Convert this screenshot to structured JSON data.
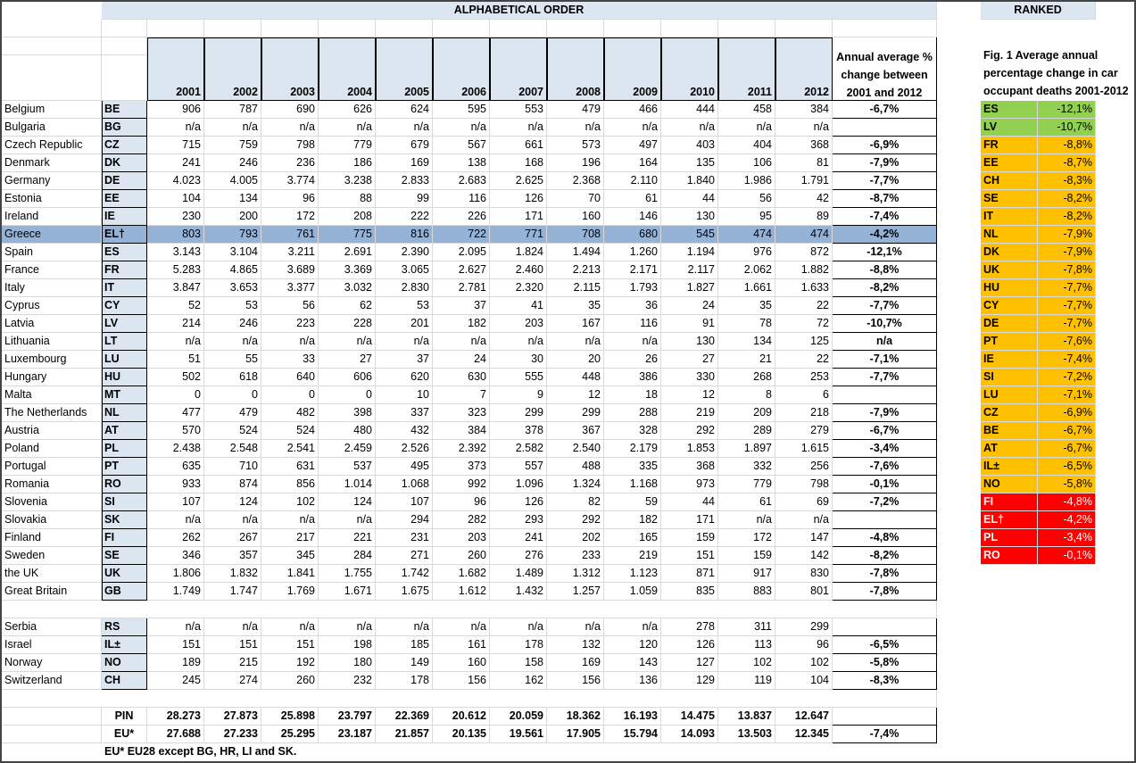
{
  "headers": {
    "alphabetical": "ALPHABETICAL ORDER",
    "ranked": "RANKED",
    "avg_change": "Annual average % change between 2001 and 2012",
    "fig_title": "Fig. 1 Average annual percentage change in car occupant deaths 2001-2012",
    "years": [
      "2001",
      "2002",
      "2003",
      "2004",
      "2005",
      "2006",
      "2007",
      "2008",
      "2009",
      "2010",
      "2011",
      "2012"
    ]
  },
  "rows": [
    {
      "country": "Belgium",
      "code": "BE",
      "values": [
        "906",
        "787",
        "690",
        "626",
        "624",
        "595",
        "553",
        "479",
        "466",
        "444",
        "458",
        "384"
      ],
      "change": "-6,7%"
    },
    {
      "country": "Bulgaria",
      "code": "BG",
      "values": [
        "n/a",
        "n/a",
        "n/a",
        "n/a",
        "n/a",
        "n/a",
        "n/a",
        "n/a",
        "n/a",
        "n/a",
        "n/a",
        "n/a"
      ],
      "change": ""
    },
    {
      "country": "Czech Republic",
      "code": "CZ",
      "values": [
        "715",
        "759",
        "798",
        "779",
        "679",
        "567",
        "661",
        "573",
        "497",
        "403",
        "404",
        "368"
      ],
      "change": "-6,9%"
    },
    {
      "country": "Denmark",
      "code": "DK",
      "values": [
        "241",
        "246",
        "236",
        "186",
        "169",
        "138",
        "168",
        "196",
        "164",
        "135",
        "106",
        "81"
      ],
      "change": "-7,9%"
    },
    {
      "country": "Germany",
      "code": "DE",
      "values": [
        "4.023",
        "4.005",
        "3.774",
        "3.238",
        "2.833",
        "2.683",
        "2.625",
        "2.368",
        "2.110",
        "1.840",
        "1.986",
        "1.791"
      ],
      "change": "-7,7%"
    },
    {
      "country": "Estonia",
      "code": "EE",
      "values": [
        "104",
        "134",
        "96",
        "88",
        "99",
        "116",
        "126",
        "70",
        "61",
        "44",
        "56",
        "42"
      ],
      "change": "-8,7%"
    },
    {
      "country": "Ireland",
      "code": "IE",
      "values": [
        "230",
        "200",
        "172",
        "208",
        "222",
        "226",
        "171",
        "160",
        "146",
        "130",
        "95",
        "89"
      ],
      "change": "-7,4%"
    },
    {
      "country": "Greece",
      "code": "EL†",
      "values": [
        "803",
        "793",
        "761",
        "775",
        "816",
        "722",
        "771",
        "708",
        "680",
        "545",
        "474",
        "474"
      ],
      "change": "-4,2%"
    },
    {
      "country": "Spain",
      "code": "ES",
      "values": [
        "3.143",
        "3.104",
        "3.211",
        "2.691",
        "2.390",
        "2.095",
        "1.824",
        "1.494",
        "1.260",
        "1.194",
        "976",
        "872"
      ],
      "change": "-12,1%"
    },
    {
      "country": "France",
      "code": "FR",
      "values": [
        "5.283",
        "4.865",
        "3.689",
        "3.369",
        "3.065",
        "2.627",
        "2.460",
        "2.213",
        "2.171",
        "2.117",
        "2.062",
        "1.882"
      ],
      "change": "-8,8%"
    },
    {
      "country": "Italy",
      "code": "IT",
      "values": [
        "3.847",
        "3.653",
        "3.377",
        "3.032",
        "2.830",
        "2.781",
        "2.320",
        "2.115",
        "1.793",
        "1.827",
        "1.661",
        "1.633"
      ],
      "change": "-8,2%"
    },
    {
      "country": "Cyprus",
      "code": "CY",
      "values": [
        "52",
        "53",
        "56",
        "62",
        "53",
        "37",
        "41",
        "35",
        "36",
        "24",
        "35",
        "22"
      ],
      "change": "-7,7%"
    },
    {
      "country": "Latvia",
      "code": "LV",
      "values": [
        "214",
        "246",
        "223",
        "228",
        "201",
        "182",
        "203",
        "167",
        "116",
        "91",
        "78",
        "72"
      ],
      "change": "-10,7%"
    },
    {
      "country": "Lithuania",
      "code": "LT",
      "values": [
        "n/a",
        "n/a",
        "n/a",
        "n/a",
        "n/a",
        "n/a",
        "n/a",
        "n/a",
        "n/a",
        "130",
        "134",
        "125"
      ],
      "change": "n/a"
    },
    {
      "country": "Luxembourg",
      "code": "LU",
      "values": [
        "51",
        "55",
        "33",
        "27",
        "37",
        "24",
        "30",
        "20",
        "26",
        "27",
        "21",
        "22"
      ],
      "change": "-7,1%"
    },
    {
      "country": "Hungary",
      "code": "HU",
      "values": [
        "502",
        "618",
        "640",
        "606",
        "620",
        "630",
        "555",
        "448",
        "386",
        "330",
        "268",
        "253"
      ],
      "change": "-7,7%"
    },
    {
      "country": "Malta",
      "code": "MT",
      "values": [
        "0",
        "0",
        "0",
        "0",
        "10",
        "7",
        "9",
        "12",
        "18",
        "12",
        "8",
        "6"
      ],
      "change": ""
    },
    {
      "country": "The Netherlands",
      "code": "NL",
      "values": [
        "477",
        "479",
        "482",
        "398",
        "337",
        "323",
        "299",
        "299",
        "288",
        "219",
        "209",
        "218"
      ],
      "change": "-7,9%"
    },
    {
      "country": "Austria",
      "code": "AT",
      "values": [
        "570",
        "524",
        "524",
        "480",
        "432",
        "384",
        "378",
        "367",
        "328",
        "292",
        "289",
        "279"
      ],
      "change": "-6,7%"
    },
    {
      "country": "Poland",
      "code": "PL",
      "values": [
        "2.438",
        "2.548",
        "2.541",
        "2.459",
        "2.526",
        "2.392",
        "2.582",
        "2.540",
        "2.179",
        "1.853",
        "1.897",
        "1.615"
      ],
      "change": "-3,4%"
    },
    {
      "country": "Portugal",
      "code": "PT",
      "values": [
        "635",
        "710",
        "631",
        "537",
        "495",
        "373",
        "557",
        "488",
        "335",
        "368",
        "332",
        "256"
      ],
      "change": "-7,6%"
    },
    {
      "country": "Romania",
      "code": "RO",
      "values": [
        "933",
        "874",
        "856",
        "1.014",
        "1.068",
        "992",
        "1.096",
        "1.324",
        "1.168",
        "973",
        "779",
        "798"
      ],
      "change": "-0,1%"
    },
    {
      "country": "Slovenia",
      "code": "SI",
      "values": [
        "107",
        "124",
        "102",
        "124",
        "107",
        "96",
        "126",
        "82",
        "59",
        "44",
        "61",
        "69"
      ],
      "change": "-7,2%"
    },
    {
      "country": "Slovakia",
      "code": "SK",
      "values": [
        "n/a",
        "n/a",
        "n/a",
        "n/a",
        "294",
        "282",
        "293",
        "292",
        "182",
        "171",
        "n/a",
        "n/a"
      ],
      "change": ""
    },
    {
      "country": "Finland",
      "code": "FI",
      "values": [
        "262",
        "267",
        "217",
        "221",
        "231",
        "203",
        "241",
        "202",
        "165",
        "159",
        "172",
        "147"
      ],
      "change": "-4,8%"
    },
    {
      "country": "Sweden",
      "code": "SE",
      "values": [
        "346",
        "357",
        "345",
        "284",
        "271",
        "260",
        "276",
        "233",
        "219",
        "151",
        "159",
        "142"
      ],
      "change": "-8,2%"
    },
    {
      "country": "the UK",
      "code": "UK",
      "values": [
        "1.806",
        "1.832",
        "1.841",
        "1.755",
        "1.742",
        "1.682",
        "1.489",
        "1.312",
        "1.123",
        "871",
        "917",
        "830"
      ],
      "change": "-7,8%"
    },
    {
      "country": "Great Britain",
      "code": "GB",
      "values": [
        "1.749",
        "1.747",
        "1.769",
        "1.671",
        "1.675",
        "1.612",
        "1.432",
        "1.257",
        "1.059",
        "835",
        "883",
        "801"
      ],
      "change": "-7,8%"
    }
  ],
  "other_rows": [
    {
      "country": "Serbia",
      "code": "RS",
      "values": [
        "n/a",
        "n/a",
        "n/a",
        "n/a",
        "n/a",
        "n/a",
        "n/a",
        "n/a",
        "n/a",
        "278",
        "311",
        "299"
      ],
      "change": ""
    },
    {
      "country": "Israel",
      "code": "IL±",
      "values": [
        "151",
        "151",
        "151",
        "198",
        "185",
        "161",
        "178",
        "132",
        "120",
        "126",
        "113",
        "96"
      ],
      "change": "-6,5%"
    },
    {
      "country": "Norway",
      "code": "NO",
      "values": [
        "189",
        "215",
        "192",
        "180",
        "149",
        "160",
        "158",
        "169",
        "143",
        "127",
        "102",
        "102"
      ],
      "change": "-5,8%"
    },
    {
      "country": "Switzerland",
      "code": "CH",
      "values": [
        "245",
        "274",
        "260",
        "232",
        "178",
        "156",
        "162",
        "156",
        "136",
        "129",
        "119",
        "104"
      ],
      "change": "-8,3%"
    }
  ],
  "totals": [
    {
      "label": "PIN",
      "values": [
        "28.273",
        "27.873",
        "25.898",
        "23.797",
        "22.369",
        "20.612",
        "20.059",
        "18.362",
        "16.193",
        "14.475",
        "13.837",
        "12.647"
      ],
      "change": ""
    },
    {
      "label": "EU*",
      "values": [
        "27.688",
        "27.233",
        "25.295",
        "23.187",
        "21.857",
        "20.135",
        "19.561",
        "17.905",
        "15.794",
        "14.093",
        "13.503",
        "12.345"
      ],
      "change": "-7,4%"
    }
  ],
  "footnote": "EU* EU28 except BG, HR, LI and SK.",
  "ranked": [
    {
      "code": "ES",
      "value": "-12,1%",
      "color": "#92d050"
    },
    {
      "code": "LV",
      "value": "-10,7%",
      "color": "#92d050"
    },
    {
      "code": "FR",
      "value": "-8,8%",
      "color": "#ffc000"
    },
    {
      "code": "EE",
      "value": "-8,7%",
      "color": "#ffc000"
    },
    {
      "code": "CH",
      "value": "-8,3%",
      "color": "#ffc000"
    },
    {
      "code": "SE",
      "value": "-8,2%",
      "color": "#ffc000"
    },
    {
      "code": "IT",
      "value": "-8,2%",
      "color": "#ffc000"
    },
    {
      "code": "NL",
      "value": "-7,9%",
      "color": "#ffc000"
    },
    {
      "code": "DK",
      "value": "-7,9%",
      "color": "#ffc000"
    },
    {
      "code": "UK",
      "value": "-7,8%",
      "color": "#ffc000"
    },
    {
      "code": "HU",
      "value": "-7,7%",
      "color": "#ffc000"
    },
    {
      "code": "CY",
      "value": "-7,7%",
      "color": "#ffc000"
    },
    {
      "code": "DE",
      "value": "-7,7%",
      "color": "#ffc000"
    },
    {
      "code": "PT",
      "value": "-7,6%",
      "color": "#ffc000"
    },
    {
      "code": "IE",
      "value": "-7,4%",
      "color": "#ffc000"
    },
    {
      "code": "SI",
      "value": "-7,2%",
      "color": "#ffc000"
    },
    {
      "code": "LU",
      "value": "-7,1%",
      "color": "#ffc000"
    },
    {
      "code": "CZ",
      "value": "-6,9%",
      "color": "#ffc000"
    },
    {
      "code": "BE",
      "value": "-6,7%",
      "color": "#ffc000"
    },
    {
      "code": "AT",
      "value": "-6,7%",
      "color": "#ffc000"
    },
    {
      "code": "IL±",
      "value": "-6,5%",
      "color": "#ffc000"
    },
    {
      "code": "NO",
      "value": "-5,8%",
      "color": "#ffc000"
    },
    {
      "code": "FI",
      "value": "-4,8%",
      "color": "#ff0000"
    },
    {
      "code": "EL†",
      "value": "-4,2%",
      "color": "#ff0000"
    },
    {
      "code": "PL",
      "value": "-3,4%",
      "color": "#ff0000"
    },
    {
      "code": "RO",
      "value": "-0,1%",
      "color": "#ff0000"
    }
  ],
  "highlight_row_color": "#95b3d7"
}
